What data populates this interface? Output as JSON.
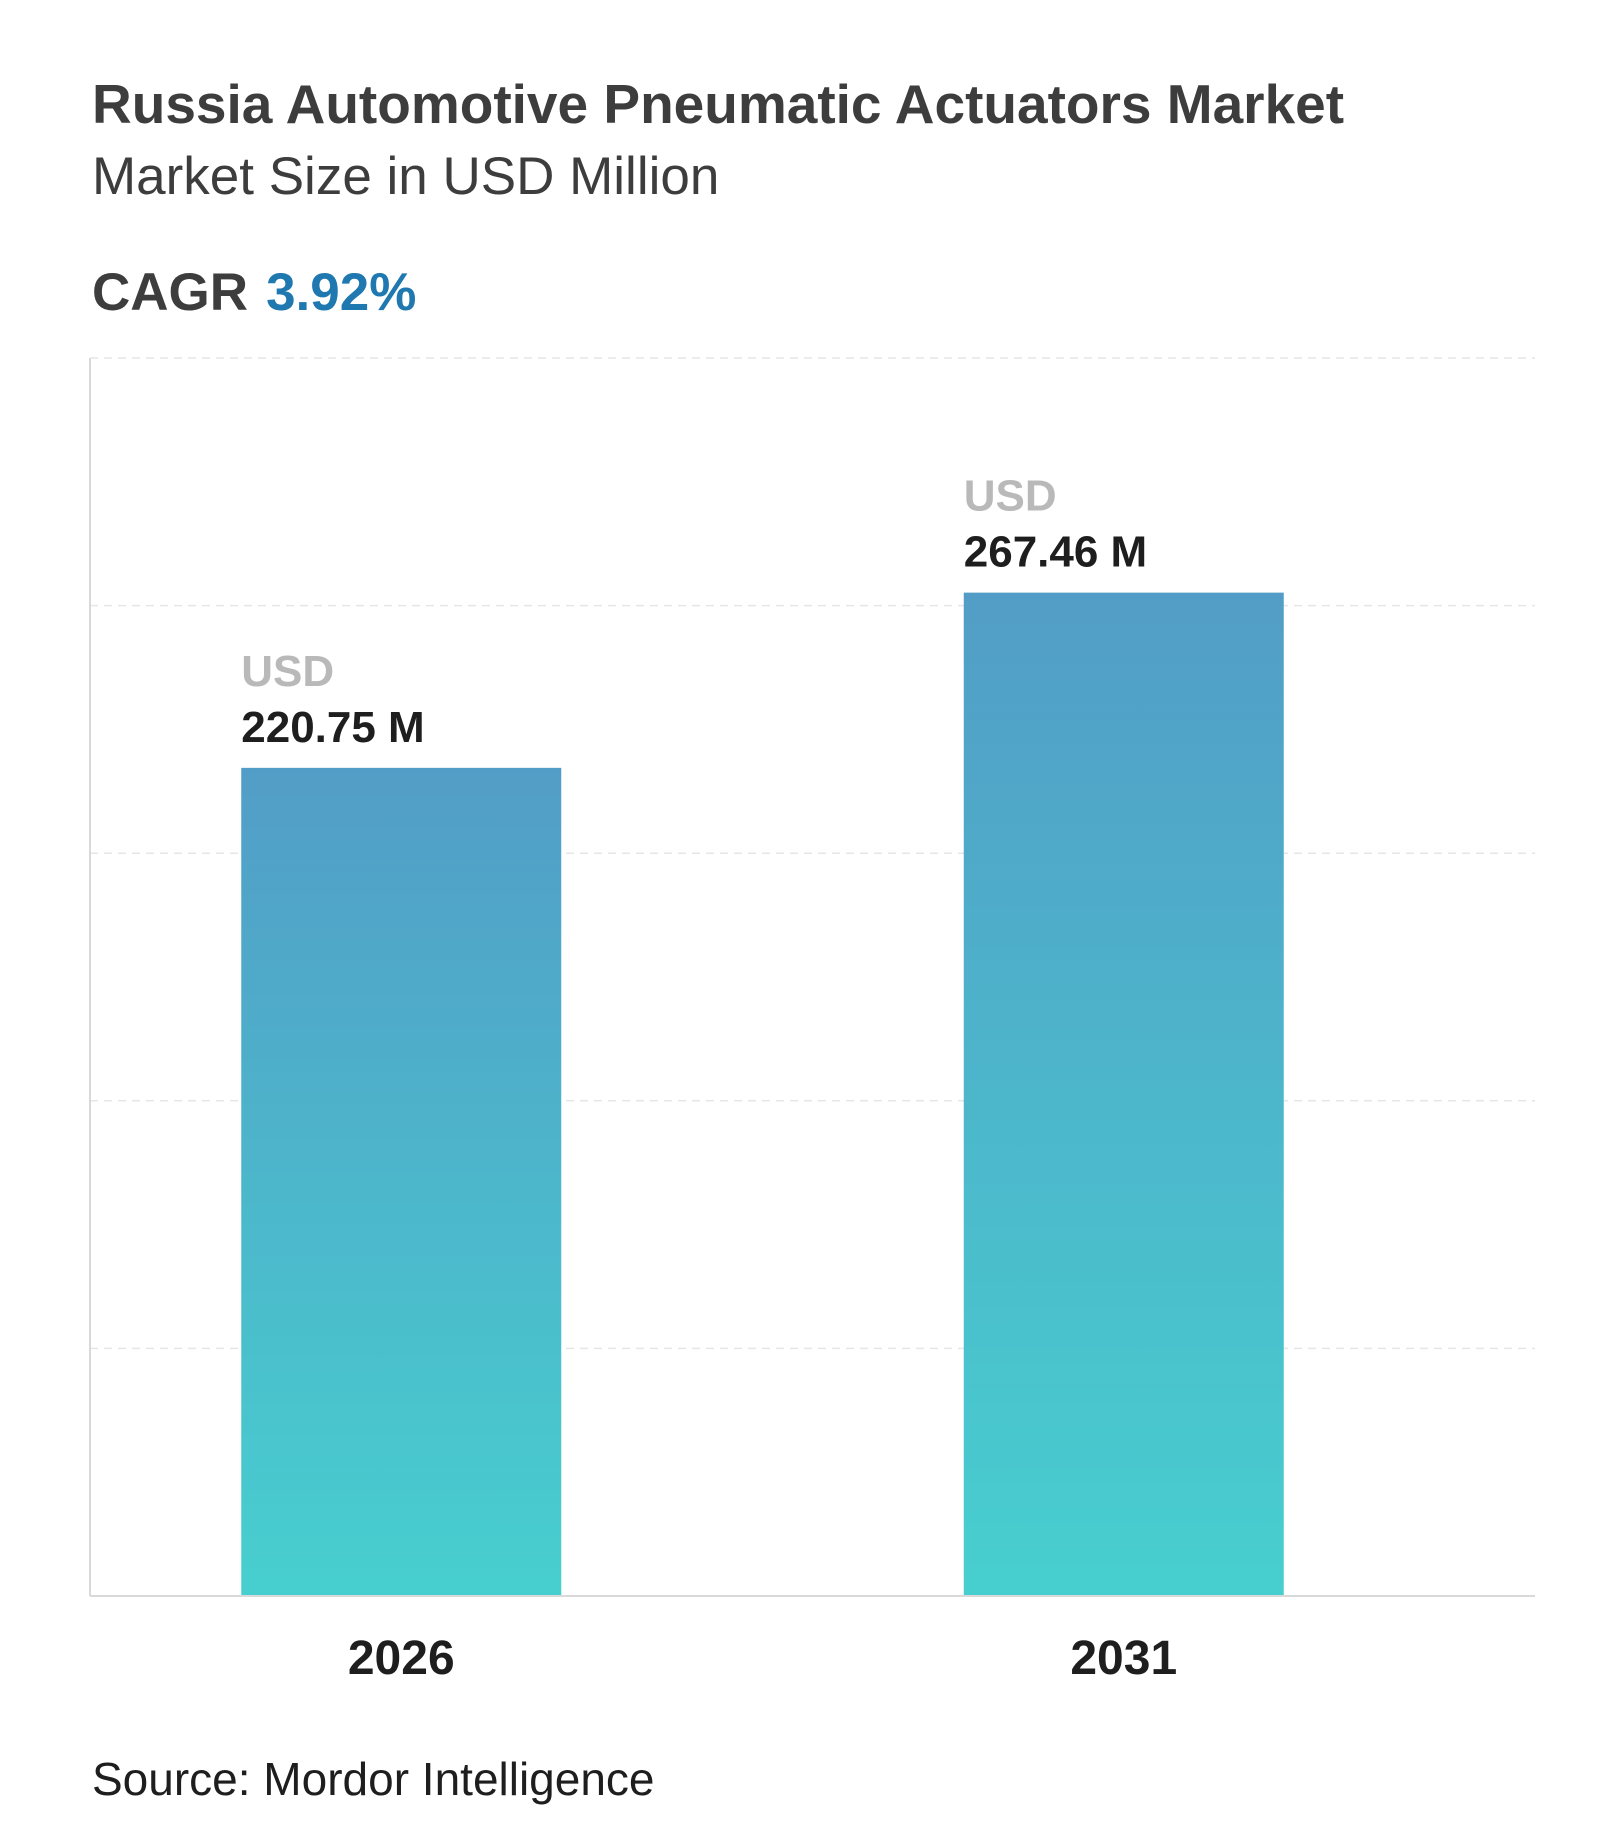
{
  "header": {
    "title": "Russia Automotive Pneumatic Actuators Market",
    "subtitle": "Market Size in USD Million",
    "cagr_label": "CAGR",
    "cagr_value": "3.92%"
  },
  "colors": {
    "bar_top": "#529dc7",
    "bar_bottom": "#47cfcf",
    "accent": "#1f78b0",
    "unit_label": "#b9b9b9",
    "gridline": "#e6e6e6",
    "axis": "#d9d9d9"
  },
  "chart_data": {
    "type": "bar",
    "title": "Russia Automotive Pneumatic Actuators Market",
    "subtitle": "Market Size in USD Million",
    "categories": [
      "2026",
      "2031"
    ],
    "values": [
      220.75,
      267.46
    ],
    "data_labels": [
      {
        "unit": "USD",
        "value": "220.75 M"
      },
      {
        "unit": "USD",
        "value": "267.46 M"
      }
    ],
    "ylim": [
      0,
      330
    ],
    "grid": true,
    "legend": "none"
  },
  "footer": {
    "source": "Source: Mordor Intelligence"
  }
}
